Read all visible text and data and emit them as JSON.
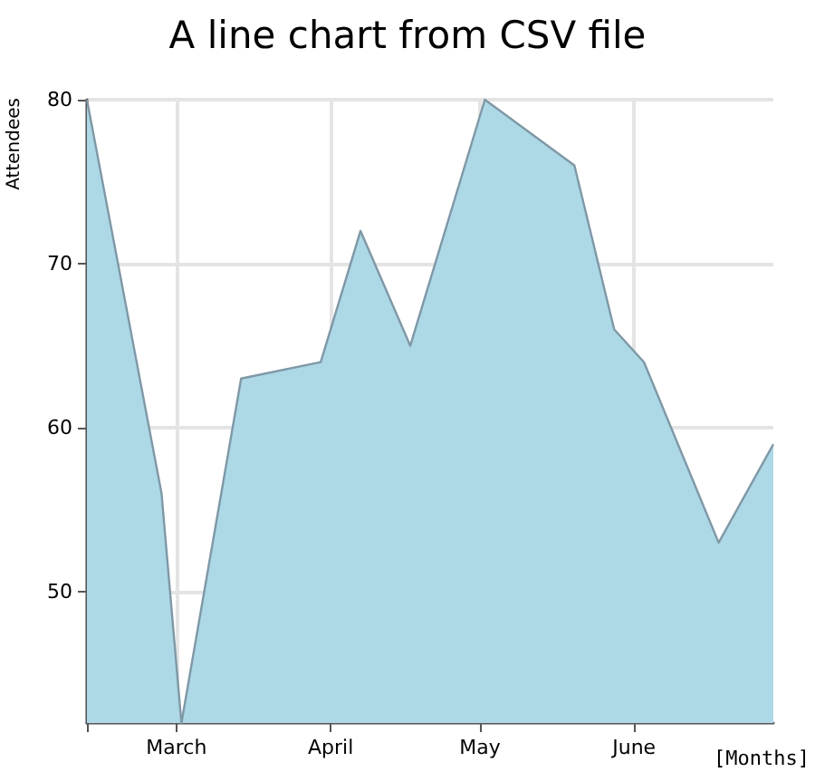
{
  "chart_data": {
    "type": "area",
    "title": "A line chart from CSV file",
    "xlabel": "[Months]",
    "ylabel": "Attendees",
    "x": [
      "--02-11",
      "--02-26",
      "--03-02",
      "--03-14",
      "--03-30",
      "--04-07",
      "--04-17",
      "--05-02",
      "--05-20",
      "--05-28",
      "--06-03",
      "--06-18",
      "--06-29"
    ],
    "series": [
      {
        "color": "#add8e6",
        "values": [
          80,
          56,
          42,
          63,
          64,
          72,
          65,
          80,
          76,
          66,
          64,
          53,
          59
        ]
      }
    ],
    "xlim": [
      "--02-11",
      "--06-29"
    ],
    "xticks": [
      {
        "value": "--02-11",
        "label": null
      },
      {
        "value": "--03-01",
        "label": "March"
      },
      {
        "value": "--04-01",
        "label": "April"
      },
      {
        "value": "--05-01",
        "label": "May"
      },
      {
        "value": "--06-01",
        "label": "June"
      }
    ],
    "ylim": [
      42,
      80
    ],
    "yticks": [
      50,
      60,
      70,
      80
    ],
    "grid": true,
    "marker": "none",
    "line_style": "solid"
  }
}
